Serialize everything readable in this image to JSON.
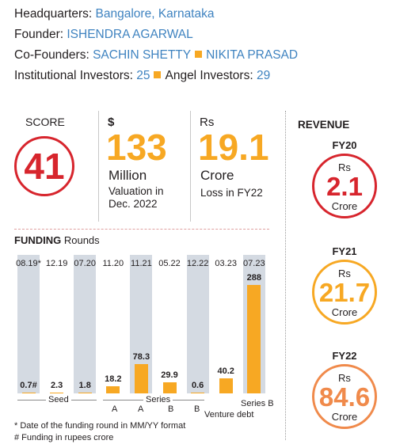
{
  "header": {
    "hq_label": "Headquarters:",
    "hq_value": "Bangalore, Karnataka",
    "founder_label": "Founder:",
    "founder_value": "ISHENDRA AGARWAL",
    "cofounders_label": "Co-Founders:",
    "cofounder1": "SACHIN SHETTY",
    "cofounder2": "NIKITA PRASAD",
    "inst_label": "Institutional Investors:",
    "inst_value": "25",
    "angel_label": "Angel Investors:",
    "angel_value": "29"
  },
  "stats": {
    "score_label": "SCORE",
    "score_value": "41",
    "valuation_currency": "$",
    "valuation_value": "133",
    "valuation_unit": "Million",
    "valuation_note": "Valuation in Dec. 2022",
    "loss_currency": "Rs",
    "loss_value": "19.1",
    "loss_unit": "Crore",
    "loss_note": "Loss in FY22"
  },
  "revenue": {
    "title": "REVENUE",
    "items": [
      {
        "year": "FY20",
        "currency": "Rs",
        "value": "2.1",
        "unit": "Crore",
        "color": "#d7252d"
      },
      {
        "year": "FY21",
        "currency": "Rs",
        "value": "21.7",
        "unit": "Crore",
        "color": "#f7a823"
      },
      {
        "year": "FY22",
        "currency": "Rs",
        "value": "84.6",
        "unit": "Crore",
        "color": "#f08a4b"
      }
    ]
  },
  "funding": {
    "title_bold": "FUNDING",
    "title_rest": "Rounds",
    "footnote1": "* Date of the funding round in MM/YY format",
    "footnote2": "# Funding in rupees crore",
    "group_seed": "Seed",
    "group_series": "Series",
    "sub_a1": "A",
    "sub_a2": "A",
    "sub_b1": "B",
    "sub_b2": "B",
    "venture": "Venture debt",
    "series_b2": "Series B"
  },
  "chart_data": {
    "type": "bar",
    "title": "FUNDING Rounds",
    "categories": [
      "08.19*",
      "12.19",
      "07.20",
      "11.20",
      "11.21",
      "05.22",
      "12.22",
      "03.23",
      "07.23"
    ],
    "values": [
      0.7,
      2.3,
      1.8,
      18.2,
      78.3,
      29.9,
      0.6,
      40.2,
      288
    ],
    "value_labels": [
      "0.7#",
      "2.3",
      "1.8",
      "18.2",
      "78.3",
      "29.9",
      "0.6",
      "40.2",
      "288"
    ],
    "rounds": [
      "Seed",
      "Seed",
      "Seed",
      "Series A",
      "Series A",
      "Series B",
      "Series B",
      "Venture debt",
      "Series B"
    ],
    "shaded_background": [
      true,
      false,
      true,
      false,
      true,
      false,
      true,
      false,
      true
    ],
    "ylim": [
      0,
      288
    ],
    "bar_color": "#f7a823",
    "background_color": "#d4dae2"
  }
}
